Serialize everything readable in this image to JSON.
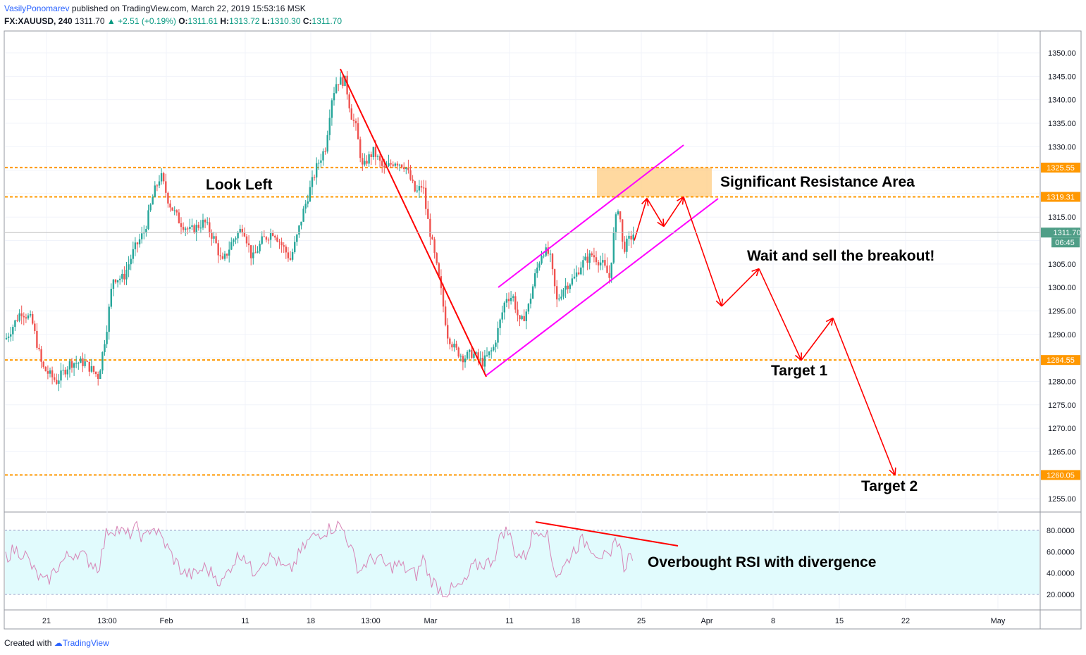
{
  "header": {
    "author": "VasilyPonomarev",
    "published": "published on TradingView.com, March 22, 2019 15:53:16 MSK",
    "symbol": "FX:XAUUSD, 240",
    "last": "1311.70",
    "change": "+2.51 (+0.19%)",
    "o_label": "O:",
    "o_val": "1311.61",
    "h_label": "H:",
    "h_val": "1313.72",
    "l_label": "L:",
    "l_val": "1310.30",
    "c_label": "C:",
    "c_val": "1311.70"
  },
  "footer": {
    "created": "Created with",
    "brand": "TradingView"
  },
  "price_axis": {
    "ticks": [
      "1350.00",
      "1345.00",
      "1340.00",
      "1335.00",
      "1330.00",
      "1315.00",
      "1305.00",
      "1300.00",
      "1295.00",
      "1290.00",
      "1280.00",
      "1275.00",
      "1270.00",
      "1265.00",
      "1255.00"
    ],
    "tick_values": [
      1350,
      1345,
      1340,
      1335,
      1330,
      1315,
      1305,
      1300,
      1295,
      1290,
      1280,
      1275,
      1270,
      1265,
      1255
    ],
    "level_labels": [
      "1325.55",
      "1319.31",
      "1284.55",
      "1260.05"
    ],
    "last_price_label": "1311.70",
    "countdown": "06:45"
  },
  "rsi_axis": {
    "ticks": [
      "80.0000",
      "60.0000",
      "40.0000",
      "20.0000"
    ],
    "tick_values": [
      80,
      60,
      40,
      20
    ]
  },
  "time_axis": {
    "labels": [
      "21",
      "13:00",
      "Feb",
      "11",
      "18",
      "13:00",
      "Mar",
      "11",
      "18",
      "25",
      "Apr",
      "8",
      "15",
      "22",
      "May"
    ]
  },
  "annotations": {
    "look_left": "Look Left",
    "resistance": "Significant Resistance Area",
    "breakout": "Wait and sell the breakout!",
    "target1": "Target 1",
    "target2": "Target 2",
    "rsi_note": "Overbought RSI with divergence"
  },
  "colors": {
    "up": "#26a69a",
    "down": "#ef5350",
    "level": "#ff9800",
    "channel": "#ff00ff",
    "trend": "#ff0000",
    "rsi": "#d784b6",
    "rsi_band": "#e1fbfd"
  },
  "chart_data": {
    "type": "candlestick",
    "symbol": "FX:XAUUSD",
    "interval": "240",
    "ylim": [
      1251,
      1354
    ],
    "horizontal_levels": [
      1325.55,
      1319.31,
      1284.55,
      1260.05
    ],
    "resistance_zone": [
      1319.31,
      1325.55
    ],
    "projected_path_prices": [
      1310,
      1319,
      1313,
      1319.3,
      1296,
      1304,
      1284.5,
      1293.5,
      1260
    ],
    "rsi": {
      "upper": 80,
      "lower": 20
    }
  }
}
